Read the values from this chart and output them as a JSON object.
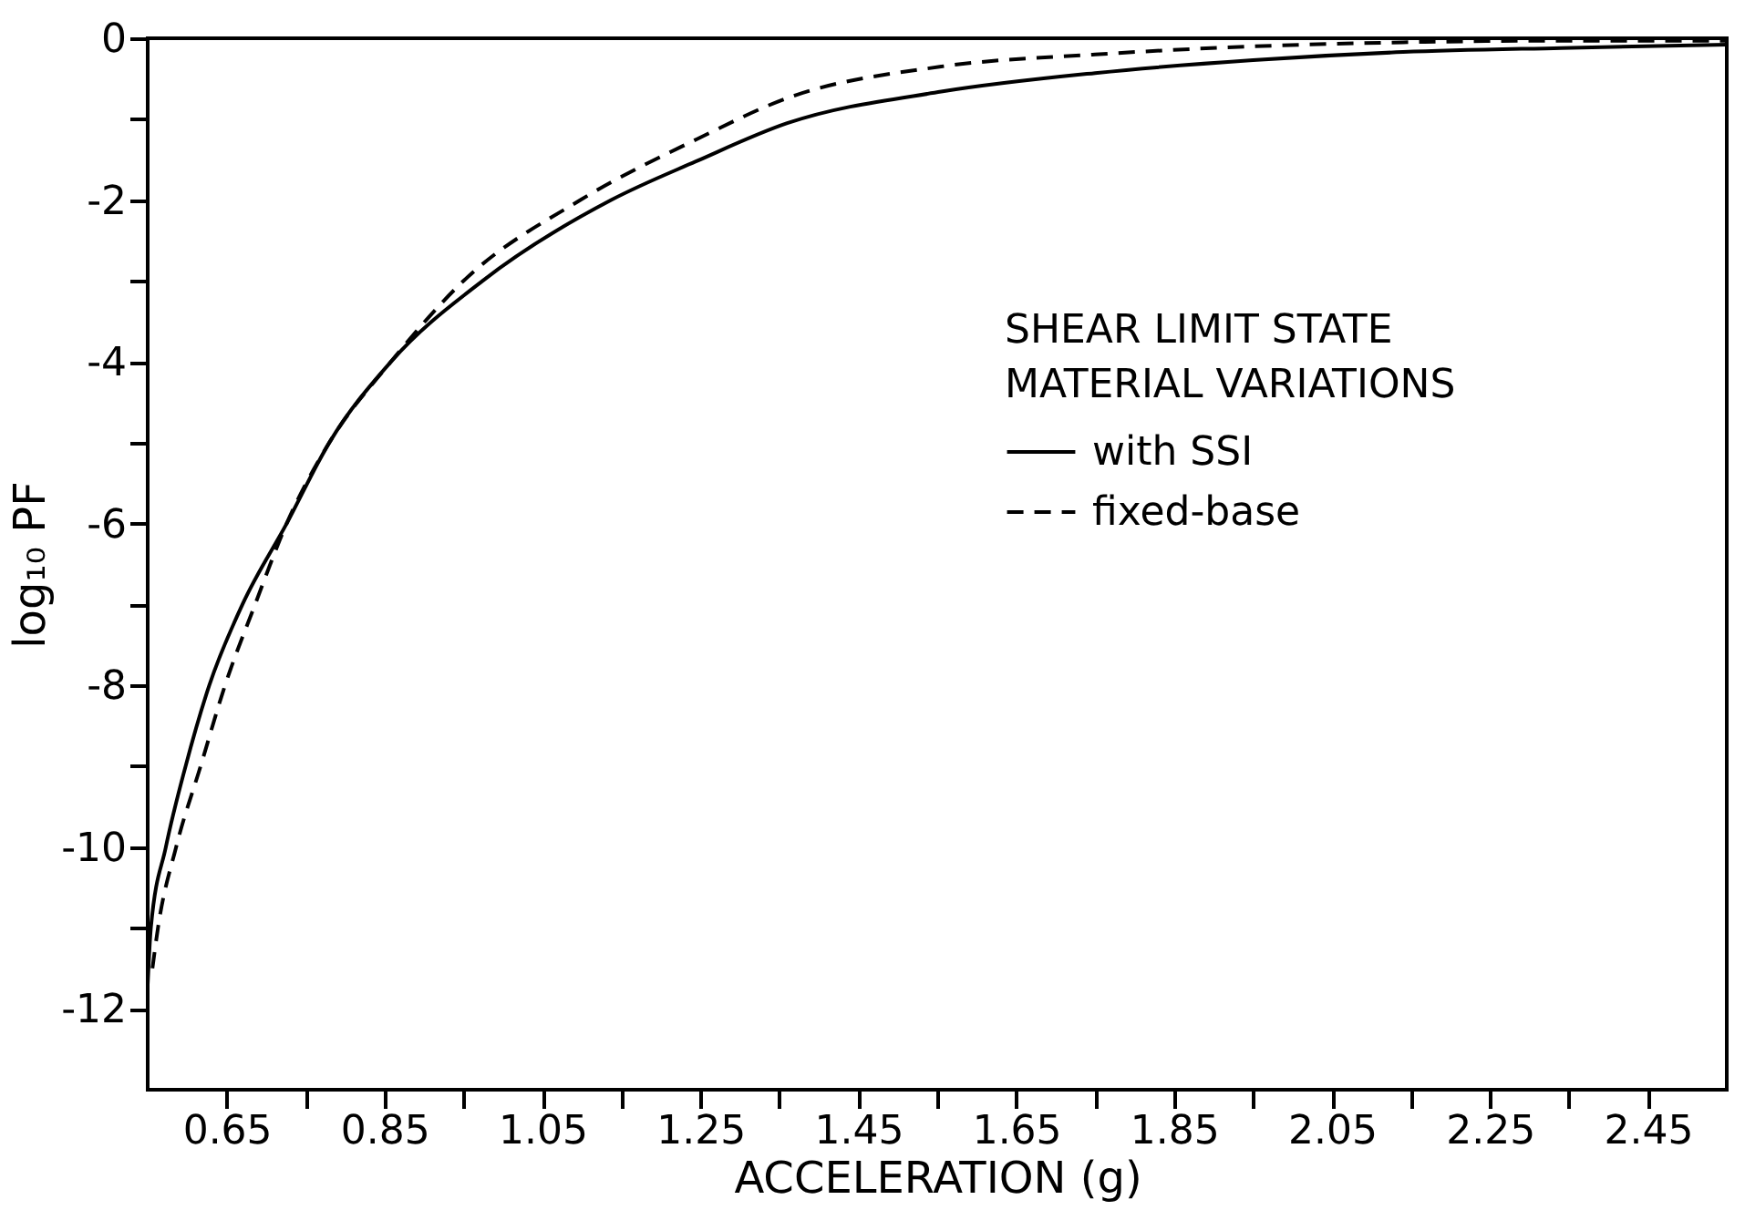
{
  "chart_data": {
    "type": "line",
    "xlabel": "ACCELERATION (g)",
    "ylabel": "log₁₀ PF",
    "legend_title": "SHEAR LIMIT STATE\nMATERIAL VARIATIONS",
    "xlim": [
      0.55,
      2.55
    ],
    "ylim": [
      -13,
      0
    ],
    "xticks": [
      0.65,
      {
        "value": 0.75,
        "label": null
      },
      0.85,
      {
        "value": 0.95,
        "label": null
      },
      1.05,
      {
        "value": 1.15,
        "label": null
      },
      1.25,
      {
        "value": 1.35,
        "label": null
      },
      1.45,
      {
        "value": 1.55,
        "label": null
      },
      1.65,
      {
        "value": 1.75,
        "label": null
      },
      1.85,
      {
        "value": 1.95,
        "label": null
      },
      2.05,
      {
        "value": 2.15,
        "label": null
      },
      2.25,
      {
        "value": 2.35,
        "label": null
      },
      2.45
    ],
    "yticks": [
      -12,
      {
        "value": -11,
        "label": null
      },
      -10,
      {
        "value": -9,
        "label": null
      },
      -8,
      {
        "value": -7,
        "label": null
      },
      -6,
      {
        "value": -5,
        "label": null
      },
      -4,
      {
        "value": -3,
        "label": null
      },
      -2,
      {
        "value": -1,
        "label": null
      },
      0
    ],
    "grid": false,
    "legend": "right",
    "marker": "none",
    "series": [
      {
        "name": "with SSI",
        "color": "#000000",
        "line_style": "solid",
        "x": [
          0.55,
          0.554,
          0.573,
          0.598,
          0.628,
          0.67,
          0.726,
          0.78,
          0.858,
          0.974,
          1.137,
          1.245,
          1.36,
          1.555,
          1.75,
          1.95,
          2.14,
          2.34,
          2.55
        ],
        "values": [
          -11.7,
          -11,
          -10,
          -9,
          -8,
          -7,
          -6,
          -5,
          -4,
          -3,
          -2,
          -1.52,
          -1.05,
          -0.66,
          -0.43,
          -0.27,
          -0.17,
          -0.12,
          -0.08
        ]
      },
      {
        "name": "fixed-base",
        "color": "#000000",
        "line_style": "dashed",
        "x": [
          0.556,
          0.563,
          0.586,
          0.617,
          0.648,
          0.686,
          0.726,
          0.78,
          0.858,
          0.95,
          1.098,
          1.245,
          1.36,
          1.555,
          1.75,
          1.95,
          2.14,
          2.34,
          2.55
        ],
        "values": [
          -11.5,
          -11,
          -10,
          -9,
          -8,
          -7,
          -6,
          -5,
          -4,
          -3,
          -2,
          -1.25,
          -0.74,
          -0.35,
          -0.2,
          -0.1,
          -0.05,
          -0.03,
          -0.03
        ]
      }
    ]
  }
}
